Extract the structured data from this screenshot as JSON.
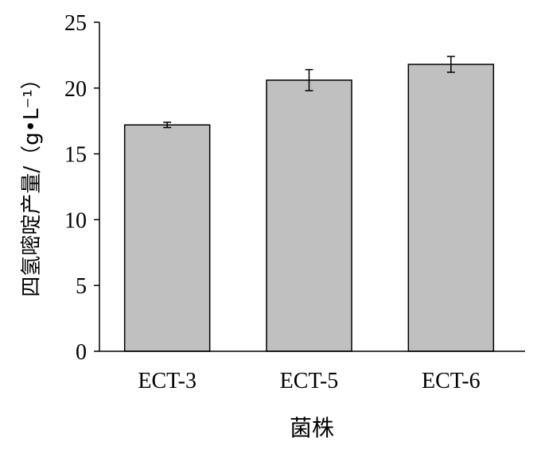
{
  "chart_data": {
    "type": "bar",
    "title": "",
    "xlabel": "菌株",
    "ylabel": "四氢嘧啶产量/（g•L⁻¹）",
    "categories": [
      "ECT-3",
      "ECT-5",
      "ECT-6"
    ],
    "values": [
      17.2,
      20.6,
      21.8
    ],
    "errors": [
      0.2,
      0.8,
      0.6
    ],
    "ylim": [
      0,
      25
    ],
    "yticks": [
      "0",
      "5",
      "10",
      "15",
      "20",
      "25"
    ],
    "grid": false,
    "bar_color": "#c0c0c0",
    "edge_color": "#000000"
  }
}
